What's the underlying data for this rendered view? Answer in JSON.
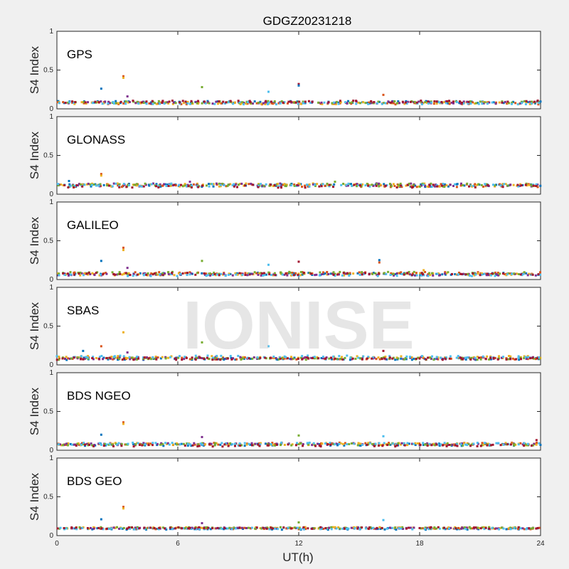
{
  "chart_data": {
    "type": "scatter",
    "title": "GDGZ20231218",
    "xlabel": "UT(h)",
    "ylabel": "S4 Index",
    "xlim": [
      0,
      24
    ],
    "ylim": [
      0,
      1
    ],
    "xticks": [
      "0",
      "6",
      "12",
      "18",
      "24"
    ],
    "yticks": [
      "0",
      "0.5",
      "1"
    ],
    "watermark": "IONISE",
    "series_colors": [
      "#0072BD",
      "#D95319",
      "#EDB120",
      "#7E2F8E",
      "#77AC30",
      "#4DBEEE",
      "#A2142F"
    ],
    "panels": [
      {
        "name": "GPS",
        "baseline": 0.08,
        "spread": 0.03,
        "spikes": [
          {
            "x": 2.2,
            "y": 0.26
          },
          {
            "x": 3.3,
            "y": 0.42
          },
          {
            "x": 3.3,
            "y": 0.4
          },
          {
            "x": 3.5,
            "y": 0.16
          },
          {
            "x": 7.2,
            "y": 0.28
          },
          {
            "x": 10.5,
            "y": 0.22
          },
          {
            "x": 12.0,
            "y": 0.32
          },
          {
            "x": 12.0,
            "y": 0.3
          },
          {
            "x": 16.2,
            "y": 0.18
          }
        ]
      },
      {
        "name": "GLONASS",
        "baseline": 0.1,
        "spread": 0.04,
        "spikes": [
          {
            "x": 0.6,
            "y": 0.17
          },
          {
            "x": 2.2,
            "y": 0.26
          },
          {
            "x": 2.2,
            "y": 0.24
          },
          {
            "x": 6.6,
            "y": 0.16
          },
          {
            "x": 13.8,
            "y": 0.16
          }
        ]
      },
      {
        "name": "GALILEO",
        "baseline": 0.07,
        "spread": 0.03,
        "spikes": [
          {
            "x": 2.2,
            "y": 0.24
          },
          {
            "x": 3.3,
            "y": 0.41
          },
          {
            "x": 3.3,
            "y": 0.38
          },
          {
            "x": 3.5,
            "y": 0.15
          },
          {
            "x": 7.2,
            "y": 0.24
          },
          {
            "x": 10.5,
            "y": 0.19
          },
          {
            "x": 12.0,
            "y": 0.23
          },
          {
            "x": 16.0,
            "y": 0.25
          },
          {
            "x": 16.0,
            "y": 0.22
          },
          {
            "x": 18.2,
            "y": 0.12
          }
        ]
      },
      {
        "name": "SBAS",
        "baseline": 0.09,
        "spread": 0.03,
        "spikes": [
          {
            "x": 1.3,
            "y": 0.18
          },
          {
            "x": 2.2,
            "y": 0.24
          },
          {
            "x": 3.3,
            "y": 0.42
          },
          {
            "x": 3.5,
            "y": 0.16
          },
          {
            "x": 7.2,
            "y": 0.29
          },
          {
            "x": 10.5,
            "y": 0.24
          },
          {
            "x": 16.2,
            "y": 0.18
          }
        ]
      },
      {
        "name": "BDS NGEO",
        "baseline": 0.07,
        "spread": 0.03,
        "spikes": [
          {
            "x": 2.2,
            "y": 0.2
          },
          {
            "x": 3.3,
            "y": 0.36
          },
          {
            "x": 3.3,
            "y": 0.34
          },
          {
            "x": 7.2,
            "y": 0.17
          },
          {
            "x": 12.0,
            "y": 0.19
          },
          {
            "x": 16.2,
            "y": 0.18
          },
          {
            "x": 23.8,
            "y": 0.13
          }
        ]
      },
      {
        "name": "BDS GEO",
        "baseline": 0.09,
        "spread": 0.02,
        "spikes": [
          {
            "x": 2.2,
            "y": 0.21
          },
          {
            "x": 3.3,
            "y": 0.37
          },
          {
            "x": 3.3,
            "y": 0.35
          },
          {
            "x": 7.2,
            "y": 0.16
          },
          {
            "x": 12.0,
            "y": 0.17
          },
          {
            "x": 16.2,
            "y": 0.2
          }
        ]
      }
    ]
  }
}
